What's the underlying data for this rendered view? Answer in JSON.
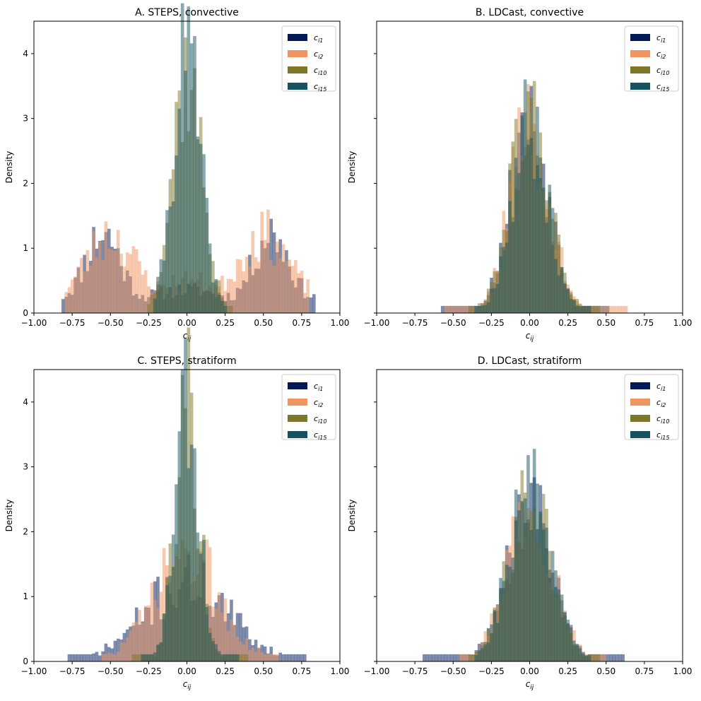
{
  "series_colors": [
    "#001a57",
    "#f09560",
    "#7d772a",
    "#155360"
  ],
  "series_alpha": 0.5,
  "chart_data": [
    {
      "type": "histogram",
      "title": "A. STEPS, convective",
      "xlabel_base": "c",
      "xlabel_sub": "ij",
      "ylabel": "Density",
      "xlim": [
        -1.0,
        1.0
      ],
      "ylim": [
        0,
        4.5
      ],
      "xticks": [
        "−1.00",
        "−0.75",
        "−0.50",
        "−0.25",
        "0.00",
        "0.25",
        "0.50",
        "0.75",
        "1.00"
      ],
      "xtick_values": [
        -1.0,
        -0.75,
        -0.5,
        -0.25,
        0.0,
        0.25,
        0.5,
        0.75,
        1.0
      ],
      "yticks": [
        "0",
        "1",
        "2",
        "3",
        "4"
      ],
      "ytick_values": [
        0,
        1,
        2,
        3,
        4
      ],
      "show_yticklabels": true,
      "legend_position": "top-right",
      "series": [
        {
          "label_base": "c",
          "label_sub": "i1",
          "range": [
            -0.82,
            0.85
          ],
          "sigma": 0.12,
          "peak": 1.05,
          "bimodal": true,
          "modes": [
            -0.55,
            0.55
          ],
          "mode_sigma": 0.11,
          "center_weight": 0.15,
          "noise": 0.35,
          "seed": 11
        },
        {
          "label_base": "c",
          "label_sub": "i2",
          "range": [
            -0.8,
            0.8
          ],
          "sigma": 0.15,
          "peak": 1.0,
          "bimodal": true,
          "modes": [
            -0.5,
            0.5
          ],
          "mode_sigma": 0.16,
          "center_weight": 0.3,
          "noise": 0.35,
          "seed": 23
        },
        {
          "label_base": "c",
          "label_sub": "i10",
          "range": [
            -0.25,
            0.3
          ],
          "sigma": 0.1,
          "peak": 3.7,
          "bimodal": false,
          "noise": 0.3,
          "seed": 37
        },
        {
          "label_base": "c",
          "label_sub": "i15",
          "range": [
            -0.22,
            0.25
          ],
          "sigma": 0.09,
          "peak": 4.0,
          "bimodal": false,
          "noise": 0.3,
          "seed": 41
        }
      ]
    },
    {
      "type": "histogram",
      "title": "B. LDCast, convective",
      "xlabel_base": "c",
      "xlabel_sub": "ij",
      "ylabel": "Density",
      "xlim": [
        -1.0,
        1.0
      ],
      "ylim": [
        0,
        4.5
      ],
      "xticks": [
        "−1.00",
        "−0.75",
        "−0.50",
        "−0.25",
        "0.00",
        "0.25",
        "0.50",
        "0.75",
        "1.00"
      ],
      "xtick_values": [
        -1.0,
        -0.75,
        -0.5,
        -0.25,
        0.0,
        0.25,
        0.5,
        0.75,
        1.0
      ],
      "yticks": [
        "0",
        "1",
        "2",
        "3",
        "4"
      ],
      "ytick_values": [
        0,
        1,
        2,
        3,
        4
      ],
      "show_yticklabels": false,
      "legend_position": "top-right",
      "series": [
        {
          "label_base": "c",
          "label_sub": "i1",
          "range": [
            -0.58,
            0.52
          ],
          "sigma": 0.13,
          "peak": 2.9,
          "bimodal": false,
          "noise": 0.3,
          "seed": 53
        },
        {
          "label_base": "c",
          "label_sub": "i2",
          "range": [
            -0.55,
            0.65
          ],
          "sigma": 0.13,
          "peak": 2.9,
          "bimodal": false,
          "noise": 0.3,
          "seed": 59
        },
        {
          "label_base": "c",
          "label_sub": "i10",
          "range": [
            -0.4,
            0.45
          ],
          "sigma": 0.13,
          "peak": 3.0,
          "bimodal": false,
          "noise": 0.3,
          "seed": 61
        },
        {
          "label_base": "c",
          "label_sub": "i15",
          "range": [
            -0.35,
            0.4
          ],
          "sigma": 0.12,
          "peak": 2.9,
          "bimodal": false,
          "noise": 0.3,
          "seed": 67
        }
      ]
    },
    {
      "type": "histogram",
      "title": "C. STEPS, stratiform",
      "xlabel_base": "c",
      "xlabel_sub": "ij",
      "ylabel": "Density",
      "xlim": [
        -1.0,
        1.0
      ],
      "ylim": [
        0,
        4.5
      ],
      "xticks": [
        "−1.00",
        "−0.75",
        "−0.50",
        "−0.25",
        "0.00",
        "0.25",
        "0.50",
        "0.75",
        "1.00"
      ],
      "xtick_values": [
        -1.0,
        -0.75,
        -0.5,
        -0.25,
        0.0,
        0.25,
        0.5,
        0.75,
        1.0
      ],
      "yticks": [
        "0",
        "1",
        "2",
        "3",
        "4"
      ],
      "ytick_values": [
        0,
        1,
        2,
        3,
        4
      ],
      "show_yticklabels": true,
      "legend_position": "top-right",
      "series": [
        {
          "label_base": "c",
          "label_sub": "i1",
          "range": [
            -0.77,
            0.77
          ],
          "sigma": 0.28,
          "peak": 1.2,
          "bimodal": false,
          "noise": 0.4,
          "seed": 71
        },
        {
          "label_base": "c",
          "label_sub": "i2",
          "range": [
            -0.55,
            0.6
          ],
          "sigma": 0.22,
          "peak": 1.6,
          "bimodal": false,
          "noise": 0.4,
          "seed": 73
        },
        {
          "label_base": "c",
          "label_sub": "i10",
          "range": [
            -0.35,
            0.4
          ],
          "sigma": 0.08,
          "peak": 3.9,
          "bimodal": false,
          "noise": 0.35,
          "seed": 79
        },
        {
          "label_base": "c",
          "label_sub": "i15",
          "range": [
            -0.3,
            0.35
          ],
          "sigma": 0.08,
          "peak": 3.8,
          "bimodal": false,
          "noise": 0.35,
          "seed": 83
        }
      ]
    },
    {
      "type": "histogram",
      "title": "D. LDCast, stratiform",
      "xlabel_base": "c",
      "xlabel_sub": "ij",
      "ylabel": "Density",
      "xlim": [
        -1.0,
        1.0
      ],
      "ylim": [
        0,
        4.5
      ],
      "xticks": [
        "−1.00",
        "−0.75",
        "−0.50",
        "−0.25",
        "0.00",
        "0.25",
        "0.50",
        "0.75",
        "1.00"
      ],
      "xtick_values": [
        -1.0,
        -0.75,
        -0.5,
        -0.25,
        0.0,
        0.25,
        0.5,
        0.75,
        1.0
      ],
      "yticks": [
        "0",
        "1",
        "2",
        "3",
        "4"
      ],
      "ytick_values": [
        0,
        1,
        2,
        3,
        4
      ],
      "show_yticklabels": false,
      "legend_position": "top-right",
      "series": [
        {
          "label_base": "c",
          "label_sub": "i1",
          "range": [
            -0.7,
            0.62
          ],
          "sigma": 0.15,
          "peak": 2.4,
          "bimodal": false,
          "noise": 0.3,
          "seed": 89
        },
        {
          "label_base": "c",
          "label_sub": "i2",
          "range": [
            -0.45,
            0.5
          ],
          "sigma": 0.15,
          "peak": 2.5,
          "bimodal": false,
          "noise": 0.3,
          "seed": 97
        },
        {
          "label_base": "c",
          "label_sub": "i10",
          "range": [
            -0.4,
            0.45
          ],
          "sigma": 0.14,
          "peak": 2.6,
          "bimodal": false,
          "noise": 0.3,
          "seed": 101
        },
        {
          "label_base": "c",
          "label_sub": "i15",
          "range": [
            -0.35,
            0.4
          ],
          "sigma": 0.14,
          "peak": 2.6,
          "bimodal": false,
          "noise": 0.3,
          "seed": 103
        }
      ]
    }
  ]
}
